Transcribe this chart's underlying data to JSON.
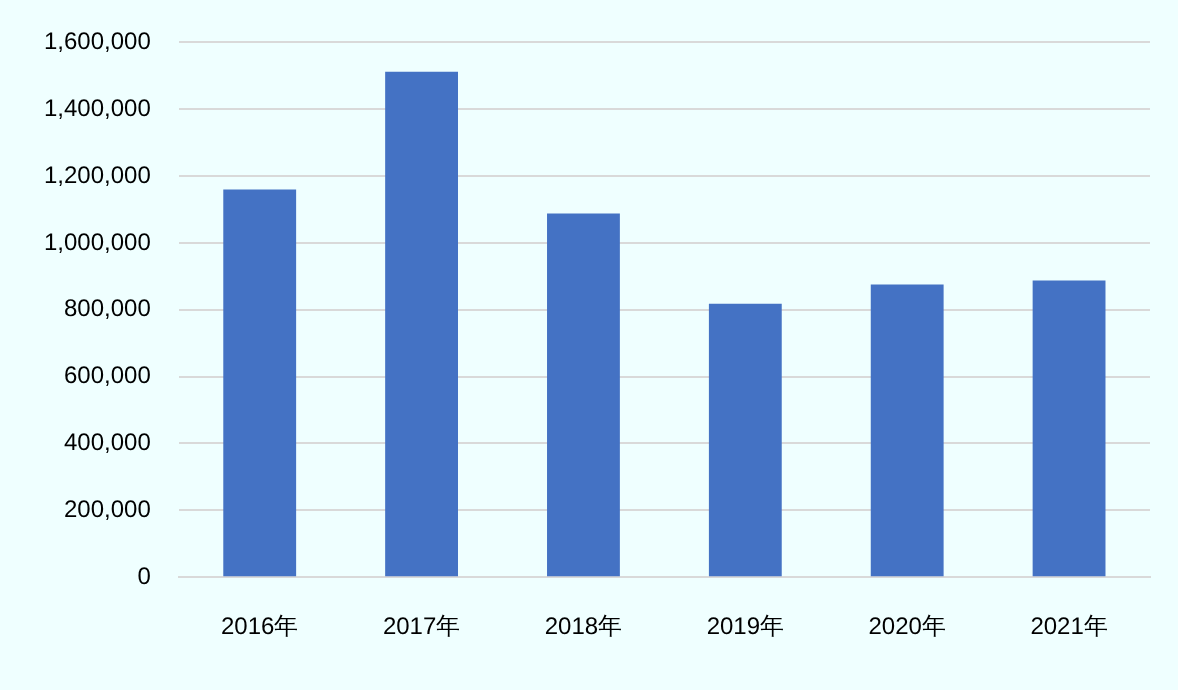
{
  "chart_data": {
    "type": "bar",
    "categories": [
      "2016年",
      "2017年",
      "2018年",
      "2019年",
      "2020年",
      "2021年"
    ],
    "values": [
      1160000,
      1512000,
      1088000,
      818000,
      876000,
      888000
    ],
    "color": "#4472c4",
    "ylim": [
      0,
      1600000
    ],
    "yticks": [
      0,
      {
        "value": 200000,
        "label": "200,000"
      },
      {
        "value": 400000,
        "label": "400,000"
      },
      {
        "value": 600000,
        "label": "600,000"
      },
      {
        "value": 800000,
        "label": "800,000"
      },
      {
        "value": 1000000,
        "label": "1,000,000"
      },
      {
        "value": 1200000,
        "label": "1,200,000"
      },
      {
        "value": 1400000,
        "label": "1,400,000"
      },
      {
        "value": 1600000,
        "label": "1,600,000"
      }
    ],
    "grid": "y",
    "legend": false
  }
}
